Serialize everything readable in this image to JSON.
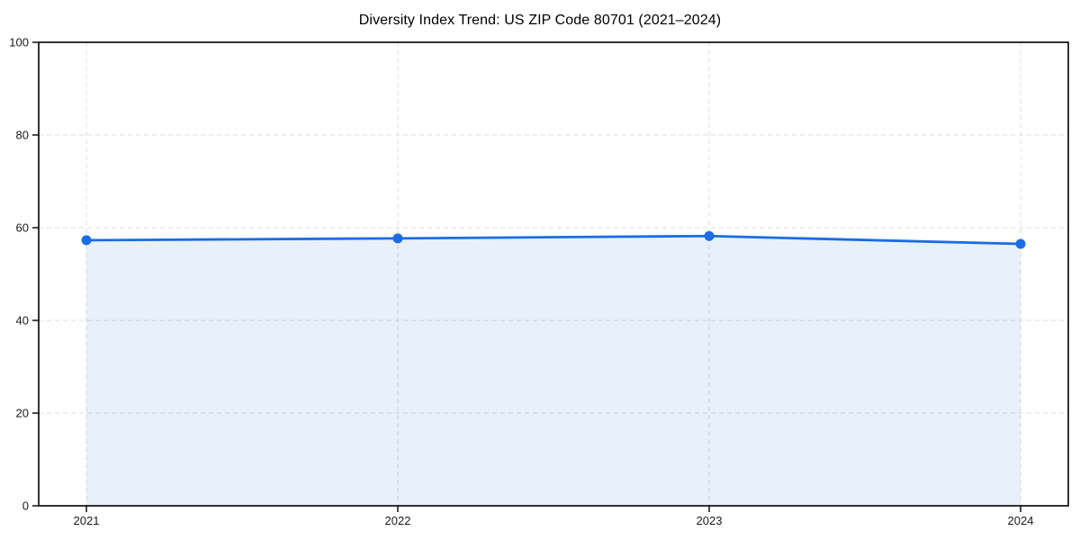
{
  "chart_data": {
    "type": "area",
    "title": "Diversity Index Trend: US ZIP Code 80701 (2021–2024)",
    "categories": [
      "2021",
      "2022",
      "2023",
      "2024"
    ],
    "values": [
      57.3,
      57.7,
      58.2,
      56.5
    ],
    "xlabel": "",
    "ylabel": "",
    "ylim": [
      0,
      100
    ],
    "yticks": [
      0,
      20,
      40,
      60,
      80,
      100
    ],
    "grid": "dashed-both-axes",
    "legend": "none",
    "marker": "circle",
    "colors": {
      "line": "#1a6de4",
      "marker": "#1a6de4",
      "fill": "rgba(26, 109, 228, 0.10)",
      "grid": "#dcdcdc",
      "axis": "#000000",
      "tick_label": "#1a1a1a",
      "title": "#000000",
      "background": "#ffffff"
    }
  }
}
